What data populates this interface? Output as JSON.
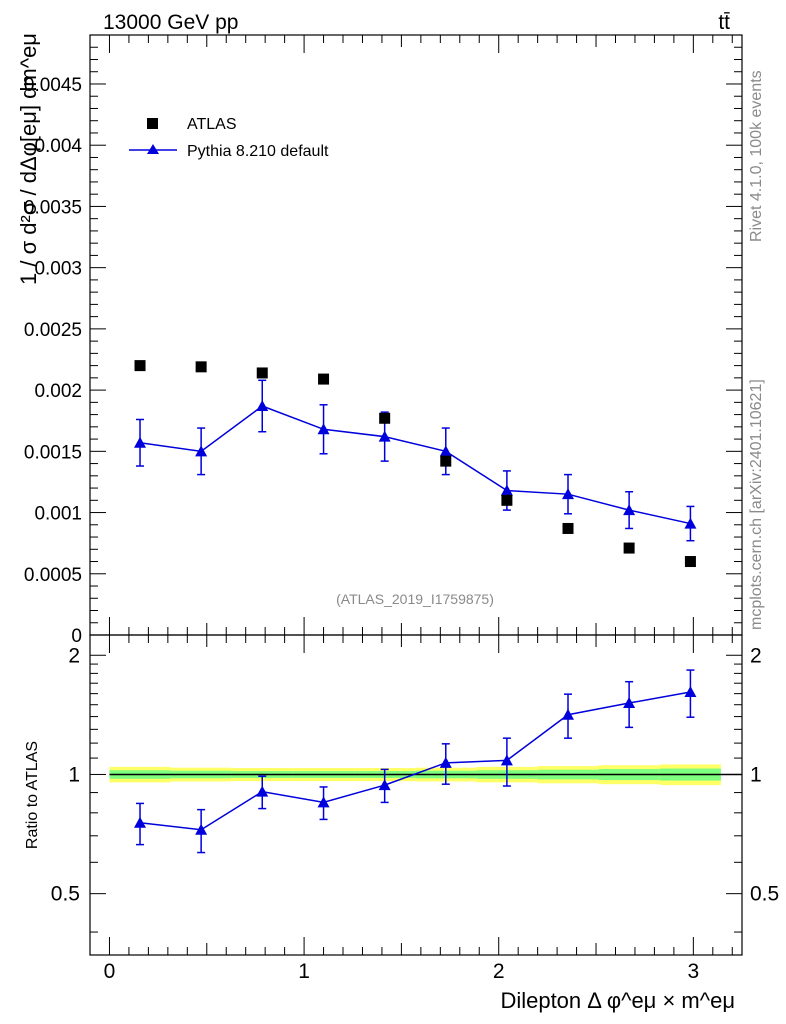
{
  "header": {
    "energy_label": "13000 GeV pp",
    "process_label": "tt̄"
  },
  "side_labels": {
    "rivet": "Rivet 4.1.0,  100k events",
    "mcplots": "mcplots.cern.ch [arXiv:2401.10621]"
  },
  "watermark": "(ATLAS_2019_I1759875)",
  "colors": {
    "data": "#000000",
    "mc": "#0000dd",
    "band_inner": "#7fff7f",
    "band_outer": "#ffff66"
  },
  "chart_data": [
    {
      "type": "scatter",
      "panel": "main",
      "ylabel": "1 / σ  d²σ / dΔφ[eμ] dm^eμ",
      "xlim": [
        -0.1,
        3.25
      ],
      "ylim": [
        0,
        0.0049
      ],
      "yticks": [
        0,
        0.0005,
        0.001,
        0.0015,
        0.002,
        0.0025,
        0.003,
        0.0035,
        0.004,
        0.0045
      ],
      "ytick_labels": [
        "0",
        "0.0005",
        "0.001",
        "0.0015",
        "0.002",
        "0.0025",
        "0.003",
        "0.0035",
        "0.004",
        "0.0045"
      ],
      "legend": {
        "position": "top-left",
        "entries": [
          "ATLAS",
          "Pythia 8.210 default"
        ]
      },
      "series": [
        {
          "name": "ATLAS",
          "style": "square",
          "x": [
            0.157,
            0.471,
            0.785,
            1.1,
            1.414,
            1.728,
            2.042,
            2.356,
            2.67,
            2.985
          ],
          "y": [
            0.0022,
            0.00219,
            0.00214,
            0.00209,
            0.00177,
            0.00142,
            0.0011,
            0.00087,
            0.00071,
            0.0006
          ]
        },
        {
          "name": "Pythia 8.210 default",
          "style": "triangle-line",
          "x": [
            0.157,
            0.471,
            0.785,
            1.1,
            1.414,
            1.728,
            2.042,
            2.356,
            2.67,
            2.985
          ],
          "y": [
            0.00157,
            0.0015,
            0.00187,
            0.00168,
            0.00162,
            0.0015,
            0.00118,
            0.00115,
            0.00102,
            0.00091
          ],
          "yerr": [
            0.00019,
            0.00019,
            0.00021,
            0.0002,
            0.0002,
            0.00019,
            0.00016,
            0.00016,
            0.00015,
            0.00014
          ]
        }
      ]
    },
    {
      "type": "scatter",
      "panel": "ratio",
      "ylabel": "Ratio to ATLAS",
      "xlabel": "Dilepton Δ φ^eμ × m^eμ",
      "xlim": [
        -0.1,
        3.25
      ],
      "ylim": [
        0.35,
        2.25
      ],
      "yticks": [
        0.5,
        1,
        2
      ],
      "ytick_labels": [
        "0.5",
        "1",
        "2"
      ],
      "xticks": [
        0,
        1,
        2,
        3
      ],
      "xtick_labels": [
        "0",
        "1",
        "2",
        "3"
      ],
      "band": {
        "xedges": [
          0,
          0.314,
          0.628,
          0.942,
          1.257,
          1.571,
          1.885,
          2.199,
          2.513,
          2.827,
          3.142
        ],
        "inner": [
          0.025,
          0.022,
          0.02,
          0.02,
          0.02,
          0.022,
          0.025,
          0.028,
          0.032,
          0.035
        ],
        "outer": [
          0.045,
          0.04,
          0.038,
          0.038,
          0.038,
          0.04,
          0.045,
          0.05,
          0.055,
          0.06
        ]
      },
      "series": [
        {
          "name": "Pythia 8.210 default",
          "x": [
            0.157,
            0.471,
            0.785,
            1.1,
            1.414,
            1.728,
            2.042,
            2.356,
            2.67,
            2.985
          ],
          "y": [
            0.755,
            0.725,
            0.905,
            0.85,
            0.94,
            1.07,
            1.085,
            1.415,
            1.515,
            1.615
          ],
          "yerr": [
            0.09,
            0.09,
            0.085,
            0.08,
            0.09,
            0.125,
            0.15,
            0.18,
            0.2,
            0.22
          ]
        }
      ]
    }
  ]
}
